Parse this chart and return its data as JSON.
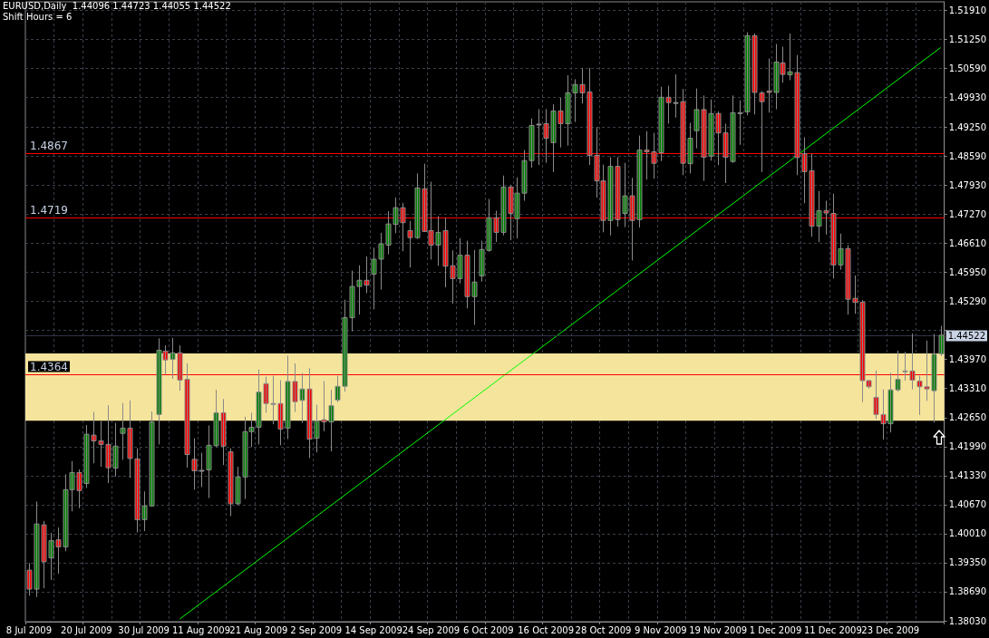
{
  "chart_data": {
    "type": "candlestick",
    "title": "EURUSD,Daily  1.44096 1.44723 1.44055 1.44522",
    "subtitle": "Shift Hours = 6",
    "categories": [
      "8 Jul 2009",
      null,
      null,
      null,
      null,
      null,
      null,
      null,
      "20 Jul 2009",
      null,
      null,
      null,
      null,
      null,
      null,
      null,
      "30 Jul 2009",
      null,
      null,
      null,
      null,
      null,
      null,
      null,
      "11 Aug 2009",
      null,
      null,
      null,
      null,
      null,
      null,
      null,
      "21 Aug 2009",
      null,
      null,
      null,
      null,
      null,
      null,
      null,
      "2 Sep 2009",
      null,
      null,
      null,
      null,
      null,
      null,
      null,
      "14 Sep 2009",
      null,
      null,
      null,
      null,
      null,
      null,
      null,
      "24 Sep 2009",
      null,
      null,
      null,
      null,
      null,
      null,
      null,
      "6 Oct 2009",
      null,
      null,
      null,
      null,
      null,
      null,
      null,
      "16 Oct 2009",
      null,
      null,
      null,
      null,
      null,
      null,
      null,
      "28 Oct 2009",
      null,
      null,
      null,
      null,
      null,
      null,
      null,
      "9 Nov 2009",
      null,
      null,
      null,
      null,
      null,
      null,
      null,
      "19 Nov 2009",
      null,
      null,
      null,
      null,
      null,
      null,
      null,
      "1 Dec 2009",
      null,
      null,
      null,
      null,
      null,
      null,
      null,
      "11 Dec 2009",
      null,
      null,
      null,
      null,
      null,
      null,
      null,
      "23 Dec 2009",
      null,
      null,
      null,
      null,
      null,
      null,
      null
    ],
    "ohlc": [
      [
        1.3918,
        1.3933,
        1.3861,
        1.3875
      ],
      [
        1.3875,
        1.4073,
        1.3858,
        1.4023
      ],
      [
        1.4021,
        1.4029,
        1.3878,
        1.3937
      ],
      [
        1.3946,
        1.4002,
        1.3897,
        1.3985
      ],
      [
        1.3987,
        1.4014,
        1.3911,
        1.3971
      ],
      [
        1.3971,
        1.4135,
        1.3962,
        1.4101
      ],
      [
        1.4101,
        1.4165,
        1.4053,
        1.414
      ],
      [
        1.414,
        1.4146,
        1.406,
        1.4099
      ],
      [
        1.4115,
        1.4247,
        1.4106,
        1.4227
      ],
      [
        1.4225,
        1.4277,
        1.4162,
        1.4212
      ],
      [
        1.4212,
        1.4256,
        1.4154,
        1.4204
      ],
      [
        1.4204,
        1.4292,
        1.4117,
        1.4151
      ],
      [
        1.415,
        1.4252,
        1.4132,
        1.42
      ],
      [
        1.4229,
        1.4297,
        1.417,
        1.4241
      ],
      [
        1.4241,
        1.4303,
        1.4129,
        1.4172
      ],
      [
        1.4171,
        1.4194,
        1.4005,
        1.4033
      ],
      [
        1.4033,
        1.4096,
        1.4008,
        1.4064
      ],
      [
        1.4064,
        1.4278,
        1.4064,
        1.4255
      ],
      [
        1.4272,
        1.4444,
        1.4205,
        1.4418
      ],
      [
        1.4416,
        1.4428,
        1.4364,
        1.4396
      ],
      [
        1.4397,
        1.4445,
        1.4354,
        1.4412
      ],
      [
        1.4412,
        1.4428,
        1.4327,
        1.435
      ],
      [
        1.4352,
        1.4387,
        1.4152,
        1.4181
      ],
      [
        1.417,
        1.4217,
        1.4102,
        1.4144
      ],
      [
        1.4145,
        1.4184,
        1.4108,
        1.4145
      ],
      [
        1.4146,
        1.4246,
        1.4083,
        1.4202
      ],
      [
        1.4201,
        1.4327,
        1.4199,
        1.4276
      ],
      [
        1.4276,
        1.4306,
        1.4158,
        1.42
      ],
      [
        1.4187,
        1.4194,
        1.4042,
        1.4069
      ],
      [
        1.4069,
        1.4152,
        1.4067,
        1.413
      ],
      [
        1.413,
        1.4266,
        1.4081,
        1.4233
      ],
      [
        1.4233,
        1.4275,
        1.4199,
        1.4243
      ],
      [
        1.4243,
        1.4373,
        1.4205,
        1.4323
      ],
      [
        1.4342,
        1.4357,
        1.4277,
        1.4297
      ],
      [
        1.4297,
        1.4359,
        1.4251,
        1.4297
      ],
      [
        1.4297,
        1.4349,
        1.4203,
        1.4239
      ],
      [
        1.4241,
        1.4405,
        1.4217,
        1.4347
      ],
      [
        1.4347,
        1.4387,
        1.4279,
        1.4301
      ],
      [
        1.4304,
        1.4365,
        1.4254,
        1.433
      ],
      [
        1.433,
        1.4376,
        1.4174,
        1.4216
      ],
      [
        1.4218,
        1.4293,
        1.4187,
        1.4257
      ],
      [
        1.426,
        1.4347,
        1.4235,
        1.4255
      ],
      [
        1.4255,
        1.4327,
        1.4189,
        1.4292
      ],
      [
        1.4305,
        1.4359,
        1.4301,
        1.4336
      ],
      [
        1.4336,
        1.4532,
        1.4325,
        1.4492
      ],
      [
        1.4492,
        1.4598,
        1.4462,
        1.4563
      ],
      [
        1.4563,
        1.461,
        1.45,
        1.4577
      ],
      [
        1.4577,
        1.463,
        1.4549,
        1.4566
      ],
      [
        1.4591,
        1.465,
        1.4512,
        1.4625
      ],
      [
        1.4625,
        1.4684,
        1.4557,
        1.466
      ],
      [
        1.4657,
        1.4733,
        1.4637,
        1.4705
      ],
      [
        1.4704,
        1.4764,
        1.4685,
        1.4742
      ],
      [
        1.4742,
        1.4752,
        1.4644,
        1.4708
      ],
      [
        1.469,
        1.4711,
        1.4607,
        1.4674
      ],
      [
        1.4674,
        1.4819,
        1.4672,
        1.4787
      ],
      [
        1.4785,
        1.4841,
        1.4688,
        1.4688
      ],
      [
        1.469,
        1.48,
        1.4625,
        1.4657
      ],
      [
        1.4657,
        1.4722,
        1.4611,
        1.4686
      ],
      [
        1.469,
        1.4718,
        1.4562,
        1.4609
      ],
      [
        1.461,
        1.4644,
        1.4525,
        1.4581
      ],
      [
        1.4581,
        1.4672,
        1.4571,
        1.4634
      ],
      [
        1.4634,
        1.4666,
        1.4514,
        1.454
      ],
      [
        1.454,
        1.4645,
        1.4477,
        1.4573
      ],
      [
        1.4587,
        1.4666,
        1.4575,
        1.4647
      ],
      [
        1.4645,
        1.4761,
        1.4643,
        1.4719
      ],
      [
        1.4719,
        1.4734,
        1.4665,
        1.4686
      ],
      [
        1.4686,
        1.4814,
        1.468,
        1.4789
      ],
      [
        1.4789,
        1.4792,
        1.4669,
        1.4729
      ],
      [
        1.4717,
        1.481,
        1.4673,
        1.4775
      ],
      [
        1.4775,
        1.4872,
        1.4759,
        1.4849
      ],
      [
        1.4849,
        1.4944,
        1.4834,
        1.4929
      ],
      [
        1.4932,
        1.4965,
        1.484,
        1.4932
      ],
      [
        1.4933,
        1.4965,
        1.4845,
        1.49
      ],
      [
        1.489,
        1.4976,
        1.4824,
        1.4962
      ],
      [
        1.4962,
        1.4991,
        1.488,
        1.4933
      ],
      [
        1.4933,
        1.5042,
        1.4884,
        1.5003
      ],
      [
        1.5003,
        1.5033,
        1.4938,
        1.5022
      ],
      [
        1.5022,
        1.5058,
        1.498,
        1.5003
      ],
      [
        1.5005,
        1.5059,
        1.484,
        1.4861
      ],
      [
        1.4861,
        1.4924,
        1.4766,
        1.4803
      ],
      [
        1.4803,
        1.4839,
        1.4687,
        1.4713
      ],
      [
        1.4713,
        1.4856,
        1.468,
        1.4836
      ],
      [
        1.4836,
        1.4856,
        1.47,
        1.4715
      ],
      [
        1.4729,
        1.4843,
        1.4699,
        1.4769
      ],
      [
        1.4769,
        1.4809,
        1.4623,
        1.4713
      ],
      [
        1.4715,
        1.4905,
        1.4698,
        1.4873
      ],
      [
        1.4873,
        1.4915,
        1.4807,
        1.4869
      ],
      [
        1.4869,
        1.4911,
        1.4809,
        1.4843
      ],
      [
        1.4867,
        1.5016,
        1.4849,
        1.4993
      ],
      [
        1.4993,
        1.5018,
        1.4934,
        1.4981
      ],
      [
        1.4981,
        1.5044,
        1.4948,
        1.4981
      ],
      [
        1.4983,
        1.5011,
        1.4817,
        1.4843
      ],
      [
        1.4842,
        1.4934,
        1.4821,
        1.49
      ],
      [
        1.4917,
        1.5012,
        1.4878,
        1.4965
      ],
      [
        1.4965,
        1.4996,
        1.4804,
        1.4857
      ],
      [
        1.4859,
        1.4987,
        1.485,
        1.4956
      ],
      [
        1.4956,
        1.496,
        1.484,
        1.4912
      ],
      [
        1.4912,
        1.4932,
        1.4799,
        1.4857
      ],
      [
        1.4847,
        1.4996,
        1.4845,
        1.4958
      ],
      [
        1.4958,
        1.4985,
        1.4886,
        1.4958
      ],
      [
        1.496,
        1.514,
        1.4953,
        1.5133
      ],
      [
        1.5133,
        1.5137,
        1.4955,
        1.5004
      ],
      [
        1.5003,
        1.5006,
        1.4824,
        1.4983
      ],
      [
        1.5007,
        1.508,
        1.4959,
        1.5004
      ],
      [
        1.5004,
        1.5113,
        1.4967,
        1.5073
      ],
      [
        1.5071,
        1.5107,
        1.5027,
        1.5045
      ],
      [
        1.5044,
        1.5137,
        1.5033,
        1.5051
      ],
      [
        1.5049,
        1.5088,
        1.4817,
        1.4856
      ],
      [
        1.4865,
        1.4901,
        1.4753,
        1.4824
      ],
      [
        1.4826,
        1.4864,
        1.4677,
        1.47
      ],
      [
        1.47,
        1.4779,
        1.4665,
        1.4735
      ],
      [
        1.4735,
        1.4757,
        1.4682,
        1.473
      ],
      [
        1.4729,
        1.4773,
        1.4582,
        1.4612
      ],
      [
        1.4612,
        1.4682,
        1.4602,
        1.4649
      ],
      [
        1.4649,
        1.4656,
        1.45,
        1.4534
      ],
      [
        1.4536,
        1.4587,
        1.4502,
        1.4527
      ],
      [
        1.4527,
        1.4531,
        1.4301,
        1.4349
      ],
      [
        1.4349,
        1.435,
        1.4332,
        1.4335
      ],
      [
        1.4311,
        1.4371,
        1.4263,
        1.4272
      ],
      [
        1.4272,
        1.4328,
        1.4216,
        1.4251
      ],
      [
        1.4251,
        1.4366,
        1.4232,
        1.4328
      ],
      [
        1.4328,
        1.4416,
        1.4325,
        1.4352
      ],
      [
        1.4371,
        1.4413,
        1.435,
        1.4371
      ],
      [
        1.4371,
        1.4455,
        1.433,
        1.435
      ],
      [
        1.4348,
        1.4359,
        1.4272,
        1.4335
      ],
      [
        1.4335,
        1.4439,
        1.4304,
        1.433
      ],
      [
        1.4326,
        1.4454,
        1.4255,
        1.4409
      ],
      [
        1.44096,
        1.44723,
        1.44055,
        1.44522
      ]
    ],
    "series": [
      {
        "type": "line",
        "color": "#00ff00",
        "values": [
          null,
          null,
          null,
          null,
          null,
          null,
          null,
          null,
          null,
          null,
          null,
          null,
          null,
          null,
          null,
          null,
          null,
          null,
          null,
          null,
          null,
          1.3807,
          null,
          null,
          null,
          null,
          null,
          null,
          null,
          null,
          null,
          null,
          null,
          null,
          null,
          null,
          null,
          null,
          null,
          null,
          null,
          null,
          null,
          null,
          null,
          null,
          null,
          null,
          null,
          null,
          null,
          null,
          null,
          null,
          null,
          null,
          null,
          null,
          null,
          null,
          null,
          null,
          null,
          null,
          null,
          null,
          null,
          null,
          null,
          null,
          null,
          null,
          null,
          null,
          null,
          null,
          null,
          null,
          null,
          null,
          null,
          null,
          null,
          null,
          null,
          null,
          null,
          null,
          null,
          null,
          null,
          null,
          null,
          null,
          null,
          null,
          null,
          null,
          null,
          null,
          null,
          null,
          null,
          null,
          null,
          null,
          null,
          null,
          null,
          null,
          null,
          null,
          null,
          null,
          null,
          null,
          null,
          null,
          null,
          null,
          null,
          null,
          null,
          null,
          null,
          null,
          null,
          1.5106
        ]
      }
    ],
    "ylim": [
      1.3801,
      1.521
    ],
    "yticks": [
      {
        "value": 1.5191,
        "label": "1.51910"
      },
      {
        "value": 1.5125,
        "label": "1.51250"
      },
      {
        "value": 1.5059,
        "label": "1.50590"
      },
      {
        "value": 1.4993,
        "label": "1.49930"
      },
      {
        "value": 1.4925,
        "label": "1.49250"
      },
      {
        "value": 1.4859,
        "label": "1.48590"
      },
      {
        "value": 1.4793,
        "label": "1.47930"
      },
      {
        "value": 1.4727,
        "label": "1.47270"
      },
      {
        "value": 1.4661,
        "label": "1.46610"
      },
      {
        "value": 1.4595,
        "label": "1.45950"
      },
      {
        "value": 1.4529,
        "label": "1.45290"
      },
      {
        "value": 1.4463,
        "label": null
      },
      {
        "value": 1.4397,
        "label": "1.43970"
      },
      {
        "value": 1.4331,
        "label": "1.43310"
      },
      {
        "value": 1.4265,
        "label": "1.42650"
      },
      {
        "value": 1.4199,
        "label": "1.41990"
      },
      {
        "value": 1.4133,
        "label": "1.41330"
      },
      {
        "value": 1.4067,
        "label": "1.40670"
      },
      {
        "value": 1.4001,
        "label": "1.40010"
      },
      {
        "value": 1.3935,
        "label": "1.39350"
      },
      {
        "value": 1.3869,
        "label": "1.38690"
      },
      {
        "value": 1.3803,
        "label": "1.38030"
      }
    ],
    "ref_lines": [
      {
        "axis": "y",
        "value": 1.4867,
        "label": "1.4867",
        "color": "#ff0000"
      },
      {
        "axis": "y",
        "value": 1.4719,
        "label": "1.4719",
        "color": "#ff0000"
      },
      {
        "axis": "y",
        "value": 1.4364,
        "label": "1.4364",
        "color": "#ff0000"
      },
      {
        "axis": "y",
        "value": 1.44522,
        "label": "1.44522",
        "color": "#2e3646"
      }
    ],
    "bands": [
      {
        "axis": "y",
        "from": 1.4258,
        "to": 1.4411,
        "color": "#f5e49c"
      }
    ],
    "grid": true
  }
}
